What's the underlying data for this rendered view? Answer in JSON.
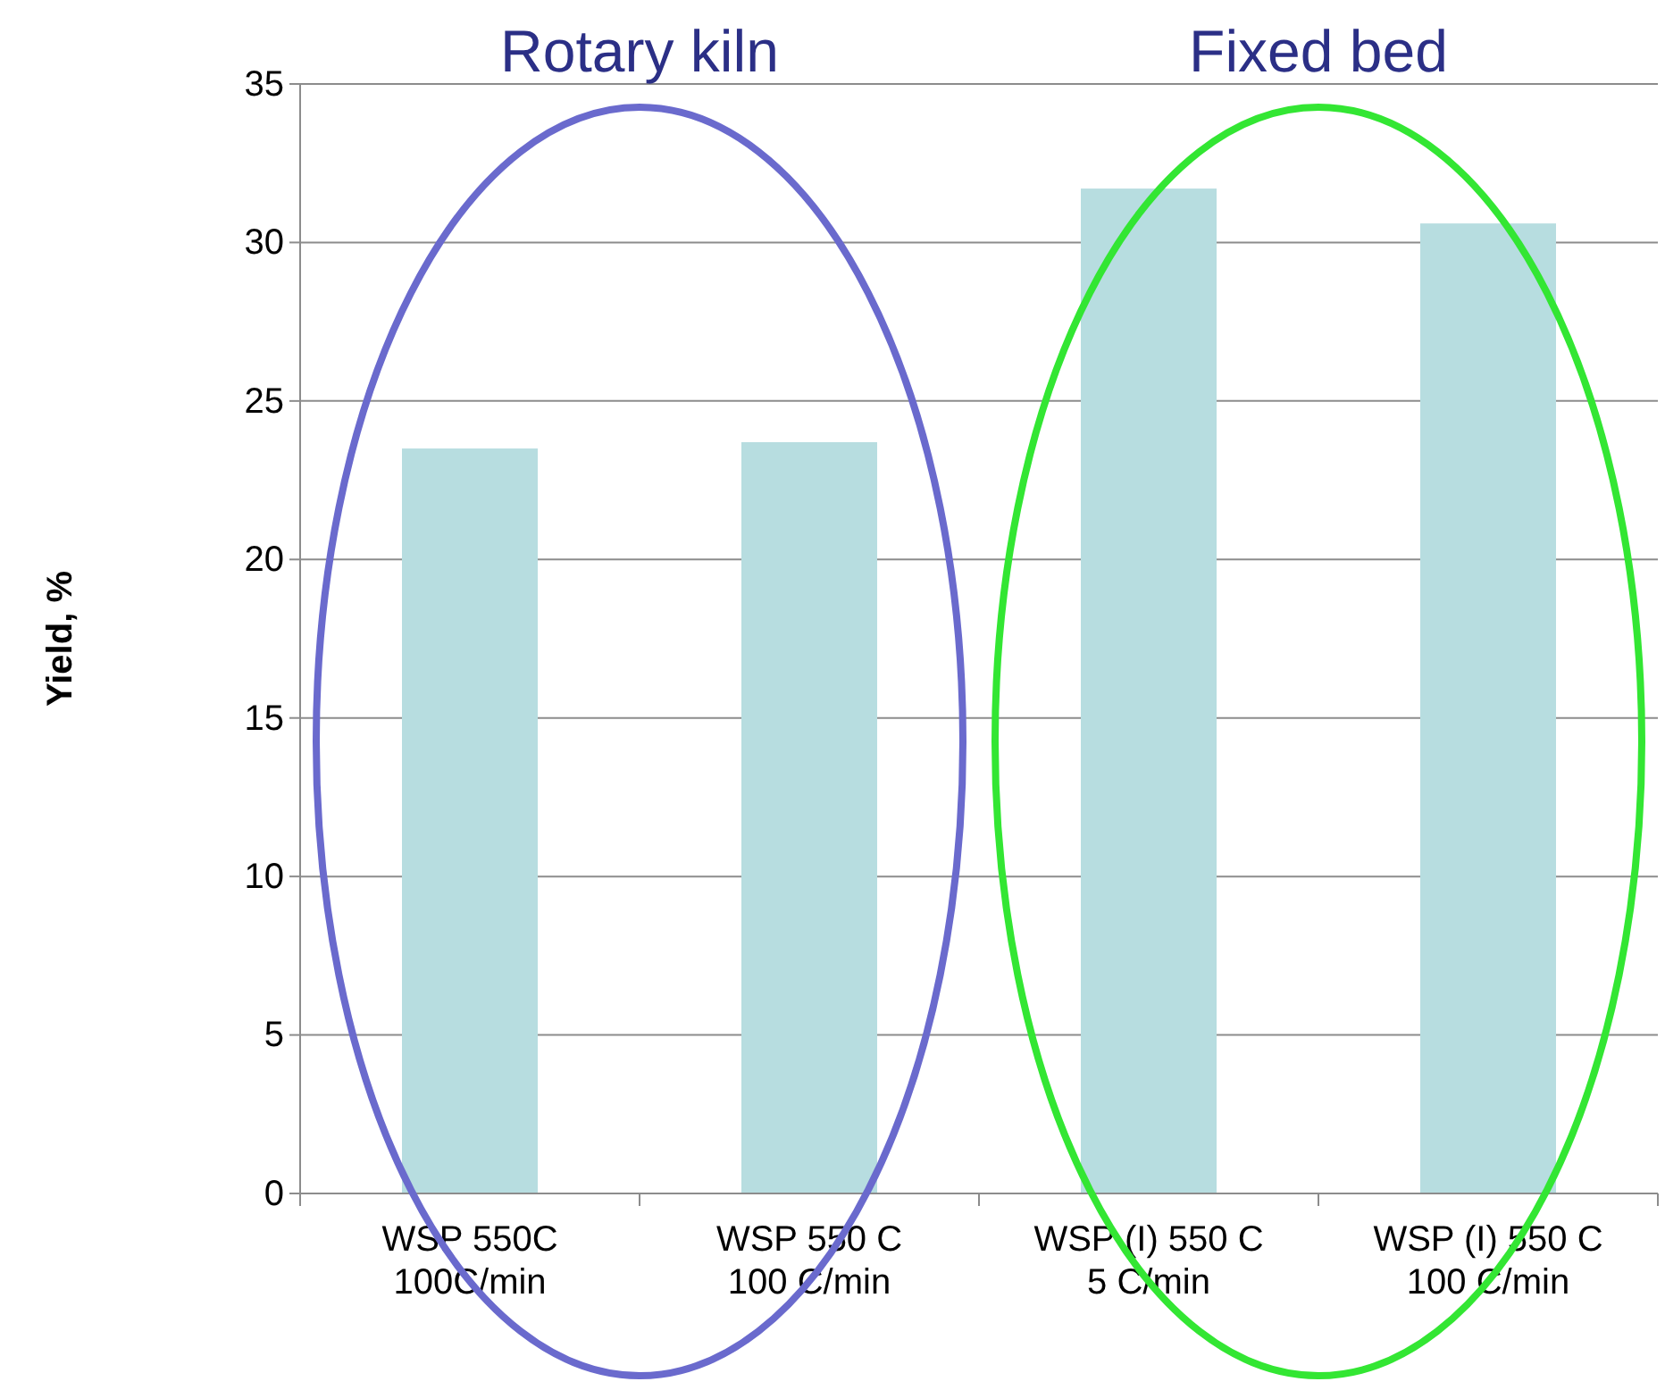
{
  "chart_data": {
    "type": "bar",
    "ylabel": "Yield, %",
    "categories": [
      "WSP 550C\n100C/min",
      "WSP 550 C\n100 C/min",
      "WSP (I) 550 C\n5 C/min",
      "WSP (I) 550 C\n100 C/min"
    ],
    "values": [
      23.5,
      23.7,
      31.7,
      30.6
    ],
    "color": "#b7dde0",
    "ylim": [
      0,
      35
    ],
    "yticks": [
      0,
      5,
      10,
      15,
      20,
      25,
      30,
      35
    ],
    "grid": "y",
    "annotations": [
      "Rotary kiln",
      "Fixed bed"
    ]
  }
}
